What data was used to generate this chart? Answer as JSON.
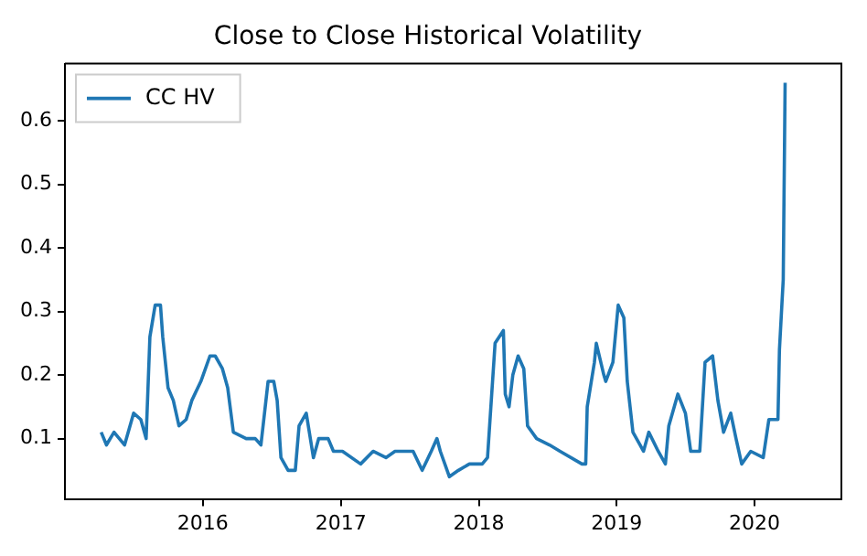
{
  "chart_data": {
    "type": "line",
    "title": "Close to Close Historical Volatility",
    "x": [
      "2015-04-07",
      "2015-04-21",
      "2015-05-11",
      "2015-06-08",
      "2015-07-02",
      "2015-07-21",
      "2015-08-04",
      "2015-08-14",
      "2015-08-28",
      "2015-09-11",
      "2015-09-17",
      "2015-10-01",
      "2015-10-15",
      "2015-10-30",
      "2015-11-18",
      "2015-12-03",
      "2015-12-27",
      "2016-01-20",
      "2016-02-03",
      "2016-02-22",
      "2016-03-07",
      "2016-03-22",
      "2016-04-25",
      "2016-05-19",
      "2016-06-03",
      "2016-06-22",
      "2016-07-07",
      "2016-07-16",
      "2016-07-26",
      "2016-08-14",
      "2016-09-02",
      "2016-09-12",
      "2016-10-01",
      "2016-10-20",
      "2016-11-03",
      "2016-11-28",
      "2016-12-12",
      "2017-01-05",
      "2017-02-22",
      "2017-03-27",
      "2017-04-30",
      "2017-05-24",
      "2017-06-22",
      "2017-07-11",
      "2017-08-04",
      "2017-08-28",
      "2017-09-12",
      "2017-09-21",
      "2017-10-15",
      "2017-11-08",
      "2017-12-07",
      "2018-01-10",
      "2018-01-24",
      "2018-02-13",
      "2018-03-07",
      "2018-03-12",
      "2018-03-22",
      "2018-04-01",
      "2018-04-15",
      "2018-04-30",
      "2018-05-10",
      "2018-06-03",
      "2018-07-07",
      "2018-08-04",
      "2018-10-01",
      "2018-10-11",
      "2018-10-15",
      "2018-11-03",
      "2018-11-08",
      "2018-11-28",
      "2018-12-03",
      "2018-12-22",
      "2019-01-05",
      "2019-01-20",
      "2019-01-29",
      "2019-02-13",
      "2019-03-04",
      "2019-03-13",
      "2019-03-27",
      "2019-04-21",
      "2019-05-10",
      "2019-05-19",
      "2019-06-12",
      "2019-07-02",
      "2019-07-16",
      "2019-08-09",
      "2019-08-23",
      "2019-09-12",
      "2019-09-26",
      "2019-10-11",
      "2019-10-30",
      "2019-11-13",
      "2019-11-28",
      "2019-12-22",
      "2020-01-24",
      "2020-02-08",
      "2020-03-03",
      "2020-03-07",
      "2020-03-17",
      "2020-03-22"
    ],
    "series": [
      {
        "name": "CC HV",
        "color": "#1f77b4",
        "values": [
          0.11,
          0.09,
          0.11,
          0.09,
          0.14,
          0.13,
          0.1,
          0.26,
          0.31,
          0.31,
          0.26,
          0.18,
          0.16,
          0.12,
          0.13,
          0.16,
          0.19,
          0.23,
          0.23,
          0.21,
          0.18,
          0.11,
          0.1,
          0.1,
          0.09,
          0.19,
          0.19,
          0.16,
          0.07,
          0.05,
          0.05,
          0.12,
          0.14,
          0.07,
          0.1,
          0.1,
          0.08,
          0.08,
          0.06,
          0.08,
          0.07,
          0.08,
          0.08,
          0.08,
          0.05,
          0.08,
          0.1,
          0.08,
          0.04,
          0.05,
          0.06,
          0.06,
          0.07,
          0.25,
          0.27,
          0.17,
          0.15,
          0.2,
          0.23,
          0.21,
          0.12,
          0.1,
          0.09,
          0.08,
          0.06,
          0.06,
          0.15,
          0.22,
          0.25,
          0.2,
          0.19,
          0.22,
          0.31,
          0.29,
          0.19,
          0.11,
          0.09,
          0.08,
          0.11,
          0.08,
          0.06,
          0.12,
          0.17,
          0.14,
          0.08,
          0.08,
          0.22,
          0.23,
          0.16,
          0.11,
          0.14,
          0.1,
          0.06,
          0.08,
          0.07,
          0.13,
          0.13,
          0.24,
          0.35,
          0.66
        ]
      }
    ],
    "xlim": [
      "2015-01-01",
      "2020-08-18"
    ],
    "xticks": [
      "2016",
      "2017",
      "2018",
      "2019",
      "2020"
    ],
    "ylim": [
      0.005,
      0.69
    ],
    "yticks": [
      0.1,
      0.2,
      0.3,
      0.4,
      0.5,
      0.6
    ],
    "legend": "top left",
    "grid": false
  }
}
